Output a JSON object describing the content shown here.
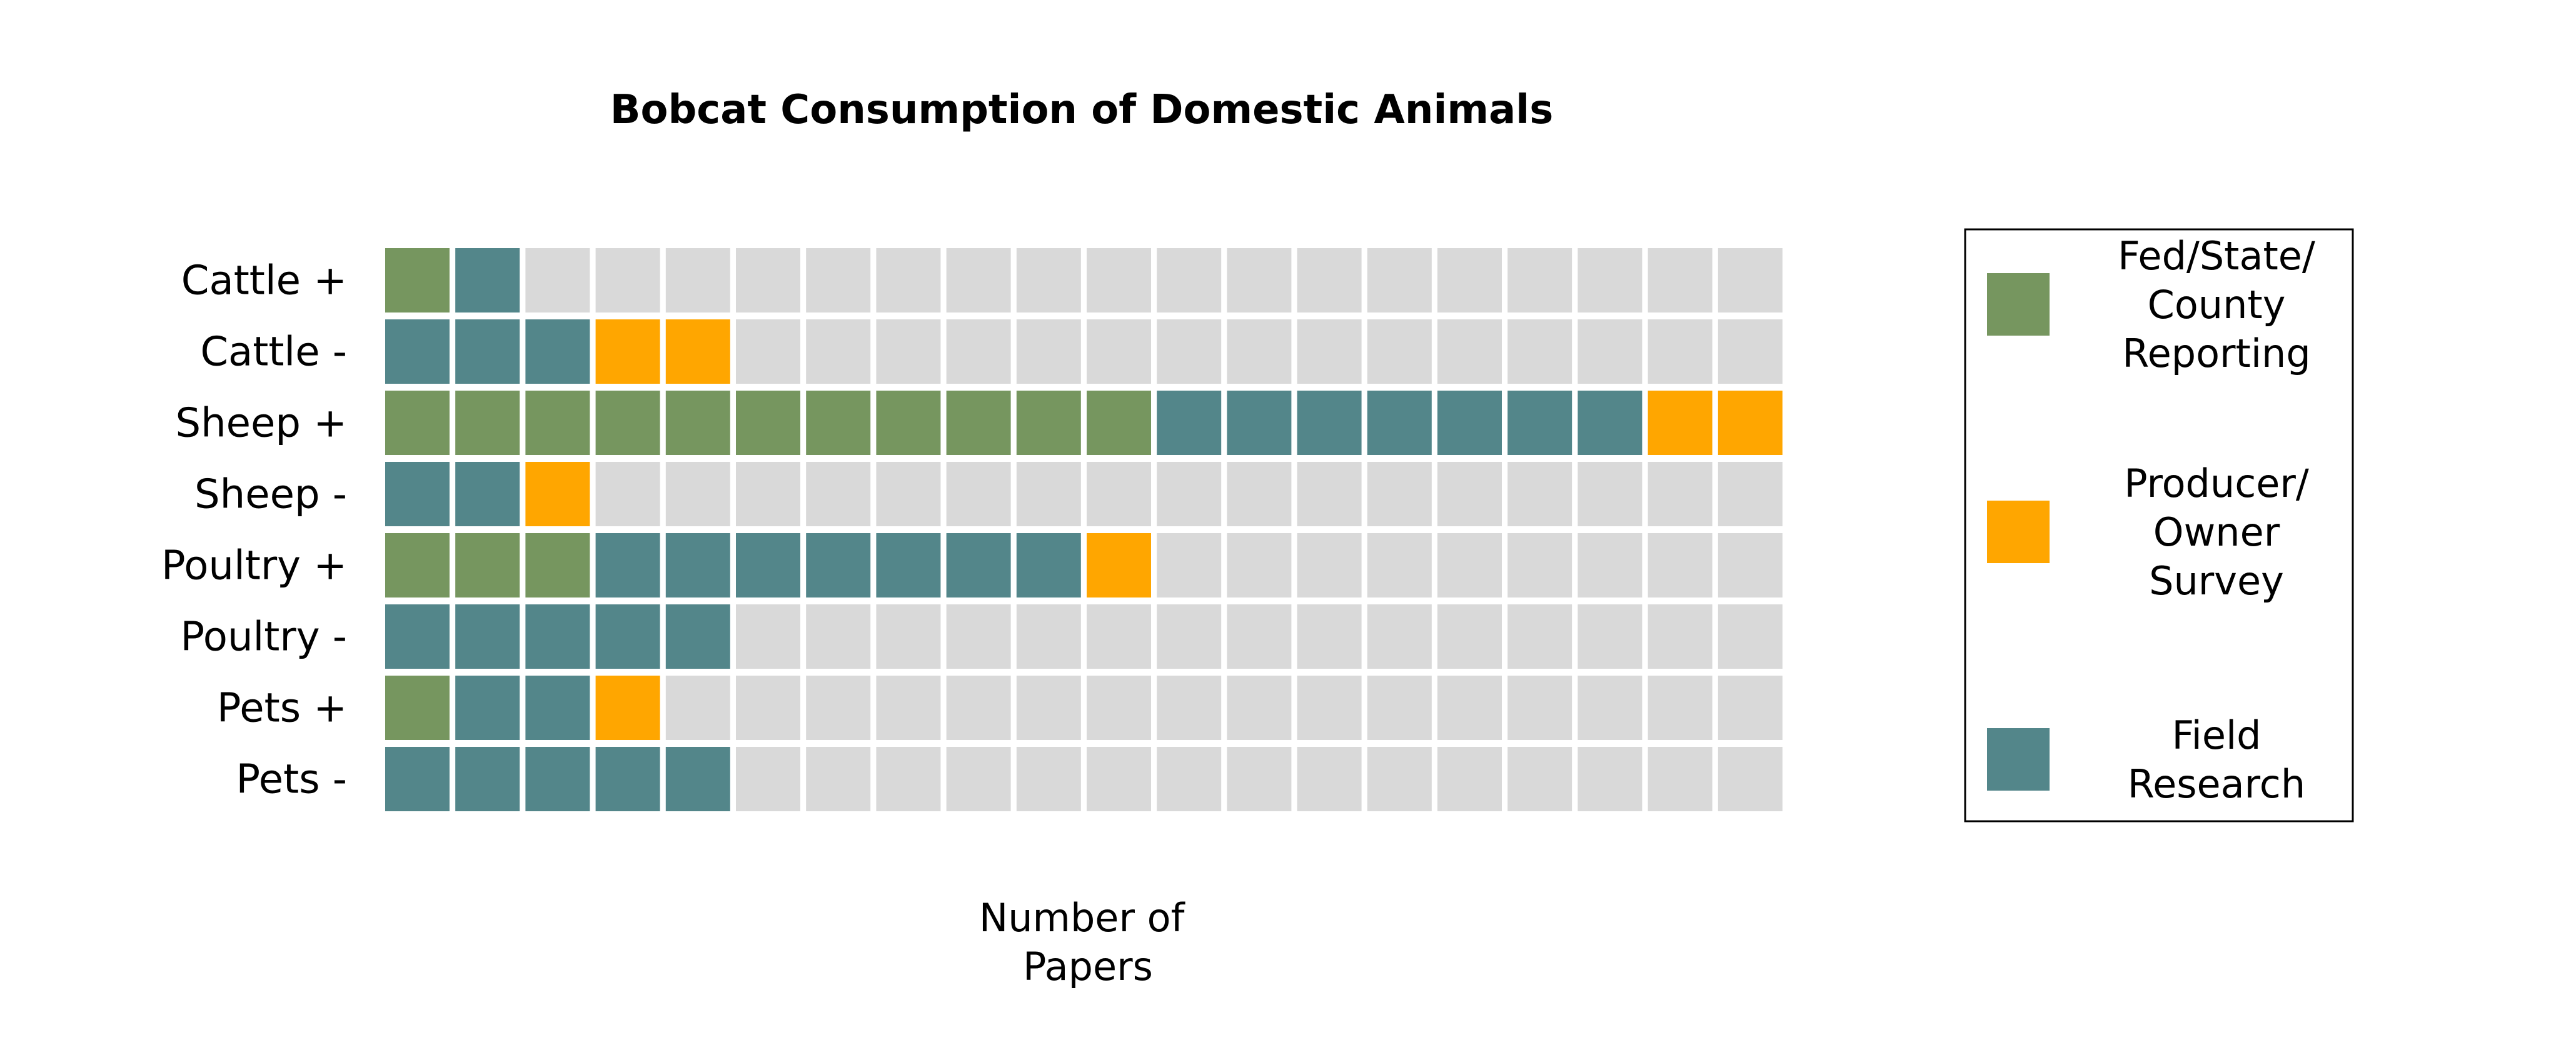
{
  "chart_data": {
    "type": "waffle",
    "title": "Bobcat Consumption of Domestic Animals",
    "xlabel": [
      "Number of",
      "Papers"
    ],
    "columns": 20,
    "categories": [
      "Cattle +",
      "Cattle -",
      "Sheep +",
      "Sheep -",
      "Poultry +",
      "Poultry -",
      "Pets +",
      "Pets -"
    ],
    "series": [
      {
        "key": "fed",
        "name": [
          "Fed/State/",
          "County",
          "Reporting"
        ],
        "color": "#76965f",
        "values": [
          1,
          0,
          11,
          0,
          3,
          0,
          1,
          0
        ]
      },
      {
        "key": "field",
        "name": [
          "Field",
          "Research"
        ],
        "color": "#53868a",
        "values": [
          1,
          3,
          7,
          2,
          7,
          5,
          2,
          5
        ]
      },
      {
        "key": "producer",
        "name": [
          "Producer/",
          "Owner",
          "Survey"
        ],
        "color": "#ffa600",
        "values": [
          0,
          2,
          2,
          1,
          1,
          0,
          1,
          0
        ]
      }
    ],
    "empty_color": "#d9d9d9",
    "legend_order": [
      "fed",
      "producer",
      "field"
    ],
    "legend_position": "right"
  }
}
